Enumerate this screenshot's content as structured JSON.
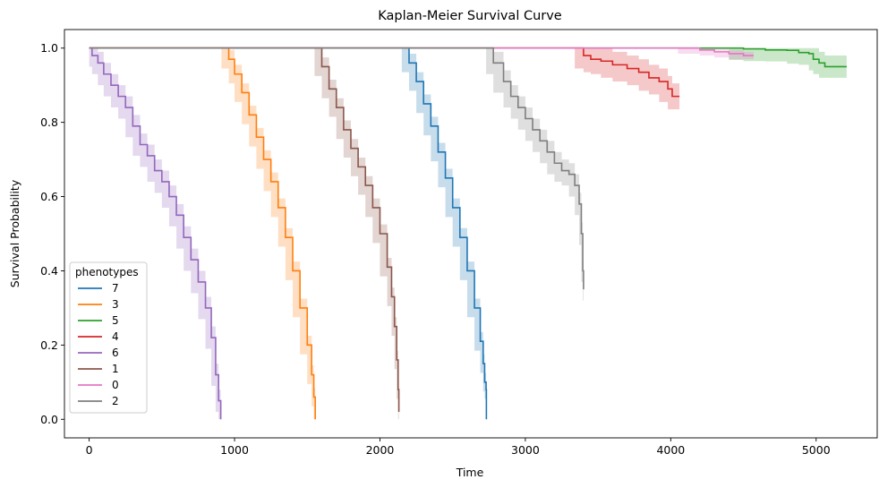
{
  "chart_data": {
    "type": "line",
    "subtype": "kaplan-meier step curves with confidence bands",
    "title": "Kaplan-Meier Survival Curve",
    "xlabel": "Time",
    "ylabel": "Survival Probability",
    "xlim": [
      -170,
      5420
    ],
    "ylim": [
      -0.05,
      1.05
    ],
    "xticks": [
      0,
      1000,
      2000,
      3000,
      4000,
      5000
    ],
    "xtick_labels": [
      "0",
      "1000",
      "2000",
      "3000",
      "4000",
      "5000"
    ],
    "yticks": [
      0.0,
      0.2,
      0.4,
      0.6,
      0.8,
      1.0
    ],
    "ytick_labels": [
      "0.0",
      "0.2",
      "0.4",
      "0.6",
      "0.8",
      "1.0"
    ],
    "grid": false,
    "legend": {
      "title": "phenotypes",
      "position": "lower-left"
    },
    "series": [
      {
        "name": "7",
        "color": "#1f77b4",
        "points": [
          [
            0,
            1.0
          ],
          [
            2150,
            1.0
          ],
          [
            2200,
            0.96
          ],
          [
            2250,
            0.91
          ],
          [
            2300,
            0.85
          ],
          [
            2350,
            0.79
          ],
          [
            2400,
            0.72
          ],
          [
            2450,
            0.65
          ],
          [
            2500,
            0.57
          ],
          [
            2550,
            0.49
          ],
          [
            2600,
            0.4
          ],
          [
            2650,
            0.3
          ],
          [
            2690,
            0.21
          ],
          [
            2710,
            0.15
          ],
          [
            2720,
            0.1
          ],
          [
            2730,
            0.08
          ],
          [
            2732,
            0.0
          ]
        ],
        "band": 0.025
      },
      {
        "name": "3",
        "color": "#ff7f0e",
        "points": [
          [
            0,
            1.0
          ],
          [
            910,
            1.0
          ],
          [
            960,
            0.97
          ],
          [
            1000,
            0.93
          ],
          [
            1050,
            0.88
          ],
          [
            1100,
            0.82
          ],
          [
            1150,
            0.76
          ],
          [
            1200,
            0.7
          ],
          [
            1250,
            0.64
          ],
          [
            1300,
            0.57
          ],
          [
            1350,
            0.49
          ],
          [
            1400,
            0.4
          ],
          [
            1450,
            0.3
          ],
          [
            1500,
            0.2
          ],
          [
            1530,
            0.12
          ],
          [
            1545,
            0.06
          ],
          [
            1555,
            0.0
          ]
        ],
        "band": 0.025
      },
      {
        "name": "5",
        "color": "#2ca02c",
        "points": [
          [
            0,
            1.0
          ],
          [
            4400,
            1.0
          ],
          [
            4500,
            0.998
          ],
          [
            4650,
            0.995
          ],
          [
            4800,
            0.994
          ],
          [
            4880,
            0.988
          ],
          [
            4950,
            0.985
          ],
          [
            4980,
            0.97
          ],
          [
            5020,
            0.96
          ],
          [
            5060,
            0.95
          ],
          [
            5210,
            0.95
          ]
        ],
        "band": 0.03
      },
      {
        "name": "4",
        "color": "#d62728",
        "points": [
          [
            0,
            1.0
          ],
          [
            3340,
            1.0
          ],
          [
            3400,
            0.98
          ],
          [
            3450,
            0.97
          ],
          [
            3520,
            0.965
          ],
          [
            3600,
            0.955
          ],
          [
            3700,
            0.945
          ],
          [
            3780,
            0.935
          ],
          [
            3850,
            0.92
          ],
          [
            3920,
            0.91
          ],
          [
            3980,
            0.89
          ],
          [
            4010,
            0.87
          ],
          [
            4060,
            0.87
          ]
        ],
        "band": 0.035
      },
      {
        "name": "6",
        "color": "#9467bd",
        "points": [
          [
            0,
            1.0
          ],
          [
            20,
            0.98
          ],
          [
            60,
            0.96
          ],
          [
            100,
            0.93
          ],
          [
            150,
            0.9
          ],
          [
            200,
            0.87
          ],
          [
            250,
            0.84
          ],
          [
            300,
            0.79
          ],
          [
            350,
            0.74
          ],
          [
            400,
            0.71
          ],
          [
            450,
            0.67
          ],
          [
            500,
            0.64
          ],
          [
            550,
            0.6
          ],
          [
            600,
            0.55
          ],
          [
            650,
            0.49
          ],
          [
            700,
            0.43
          ],
          [
            750,
            0.37
          ],
          [
            800,
            0.3
          ],
          [
            840,
            0.22
          ],
          [
            870,
            0.12
          ],
          [
            890,
            0.05
          ],
          [
            905,
            0.0
          ]
        ],
        "band": 0.03
      },
      {
        "name": "1",
        "color": "#8c564b",
        "points": [
          [
            0,
            1.0
          ],
          [
            1550,
            1.0
          ],
          [
            1600,
            0.95
          ],
          [
            1650,
            0.89
          ],
          [
            1700,
            0.84
          ],
          [
            1750,
            0.78
          ],
          [
            1800,
            0.73
          ],
          [
            1850,
            0.68
          ],
          [
            1900,
            0.63
          ],
          [
            1950,
            0.57
          ],
          [
            2000,
            0.5
          ],
          [
            2050,
            0.41
          ],
          [
            2080,
            0.33
          ],
          [
            2100,
            0.25
          ],
          [
            2115,
            0.16
          ],
          [
            2125,
            0.08
          ],
          [
            2130,
            0.02
          ]
        ],
        "band": 0.025
      },
      {
        "name": "0",
        "color": "#e377c2",
        "points": [
          [
            0,
            1.0
          ],
          [
            4050,
            1.0
          ],
          [
            4200,
            0.995
          ],
          [
            4300,
            0.99
          ],
          [
            4400,
            0.985
          ],
          [
            4500,
            0.98
          ],
          [
            4570,
            0.98
          ]
        ],
        "band": 0.01
      },
      {
        "name": "2",
        "color": "#7f7f7f",
        "points": [
          [
            0,
            1.0
          ],
          [
            2730,
            1.0
          ],
          [
            2780,
            0.96
          ],
          [
            2850,
            0.91
          ],
          [
            2900,
            0.87
          ],
          [
            2950,
            0.84
          ],
          [
            3000,
            0.81
          ],
          [
            3050,
            0.78
          ],
          [
            3100,
            0.75
          ],
          [
            3150,
            0.72
          ],
          [
            3200,
            0.69
          ],
          [
            3250,
            0.67
          ],
          [
            3300,
            0.66
          ],
          [
            3340,
            0.63
          ],
          [
            3370,
            0.58
          ],
          [
            3385,
            0.5
          ],
          [
            3395,
            0.4
          ],
          [
            3400,
            0.35
          ]
        ],
        "band": 0.03
      }
    ]
  }
}
